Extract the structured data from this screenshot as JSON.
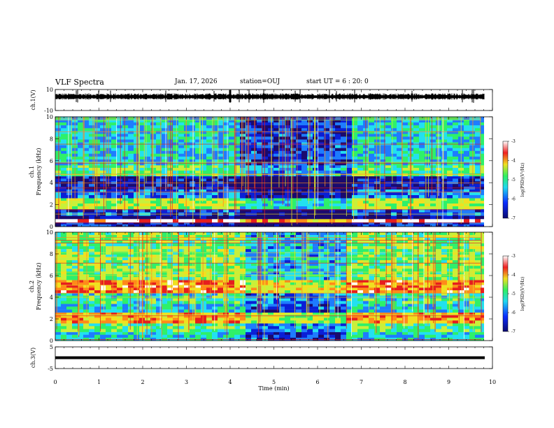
{
  "header": {
    "title": "VLF Spectra",
    "date": "Jan. 17, 2026",
    "station": "station=OUJ",
    "start": "start UT =  6 : 20: 0"
  },
  "colors": {
    "colormap": [
      "#1a0a6e",
      "#0a1fd6",
      "#1e7cff",
      "#22e0f0",
      "#2ef06a",
      "#c8f03a",
      "#f0e020",
      "#ff8a1a",
      "#e61e1e",
      "#ffffff"
    ]
  },
  "chart_data": [
    {
      "type": "line",
      "panel": "waveform-ch1",
      "ylabel": "ch.1(V)",
      "ylim": [
        -10,
        10
      ],
      "y_ticklabels": [
        "10",
        "-10"
      ],
      "baseline_value": 3,
      "xlim": [
        0,
        10
      ]
    },
    {
      "type": "heatmap",
      "panel": "spectrogram-ch1",
      "ylabel_line1": "ch.1",
      "ylabel_line2": "Frequency (kHz)",
      "ylim": [
        0,
        10
      ],
      "y_ticklabels": [
        "0",
        "2",
        "4",
        "6",
        "8",
        "10"
      ],
      "xlim": [
        0,
        10
      ],
      "colorbar": {
        "label": "log(PSD)(V²/Hz)",
        "range": [
          -7,
          -3
        ],
        "ticklabels": [
          "-3",
          "-4",
          "-5",
          "-6",
          "-7"
        ]
      },
      "bands": [
        {
          "f_lo": 0.0,
          "f_hi": 0.4,
          "level": 0.15
        },
        {
          "f_lo": 0.4,
          "f_hi": 0.7,
          "level": 0.9
        },
        {
          "f_lo": 0.7,
          "f_hi": 1.0,
          "level": 0.05
        },
        {
          "f_lo": 1.0,
          "f_hi": 1.6,
          "level": 0.2
        },
        {
          "f_lo": 1.6,
          "f_hi": 2.6,
          "level": 0.55
        },
        {
          "f_lo": 2.6,
          "f_hi": 3.4,
          "level": 0.25
        },
        {
          "f_lo": 3.4,
          "f_hi": 4.6,
          "level": 0.1
        },
        {
          "f_lo": 4.6,
          "f_hi": 5.6,
          "level": 0.45
        },
        {
          "f_lo": 5.6,
          "f_hi": 10.0,
          "level": 0.35
        }
      ],
      "quiet_interval": [
        4.1,
        6.7
      ]
    },
    {
      "type": "heatmap",
      "panel": "spectrogram-ch2",
      "ylabel_line1": "ch.2",
      "ylabel_line2": "Frequency (kHz)",
      "ylim": [
        0,
        10
      ],
      "y_ticklabels": [
        "0",
        "2",
        "4",
        "6",
        "8",
        "10"
      ],
      "xlim": [
        0,
        10
      ],
      "colorbar": {
        "label": "log(PSD)(V²/Hz)",
        "range": [
          -7,
          -3
        ],
        "ticklabels": [
          "-3",
          "-4",
          "-5",
          "-6",
          "-7"
        ]
      },
      "bands": [
        {
          "f_lo": 0.0,
          "f_hi": 0.8,
          "level": 0.35
        },
        {
          "f_lo": 0.8,
          "f_hi": 1.6,
          "level": 0.45
        },
        {
          "f_lo": 1.6,
          "f_hi": 2.6,
          "level": 0.72
        },
        {
          "f_lo": 2.6,
          "f_hi": 3.4,
          "level": 0.35
        },
        {
          "f_lo": 3.4,
          "f_hi": 4.4,
          "level": 0.4
        },
        {
          "f_lo": 4.4,
          "f_hi": 5.6,
          "level": 0.78
        },
        {
          "f_lo": 5.6,
          "f_hi": 10.0,
          "level": 0.5
        }
      ],
      "quiet_interval": [
        4.3,
        6.6
      ]
    },
    {
      "type": "line",
      "panel": "waveform-ch3",
      "ylabel": "ch.3(V)",
      "ylim": [
        -5,
        5
      ],
      "y_ticklabels": [
        "5",
        "-5"
      ],
      "baseline_value": 0,
      "xlim": [
        0,
        10
      ],
      "xlabel": "Time (min)",
      "x_ticklabels": [
        "0",
        "1",
        "2",
        "3",
        "4",
        "5",
        "6",
        "7",
        "8",
        "9",
        "10"
      ]
    }
  ]
}
